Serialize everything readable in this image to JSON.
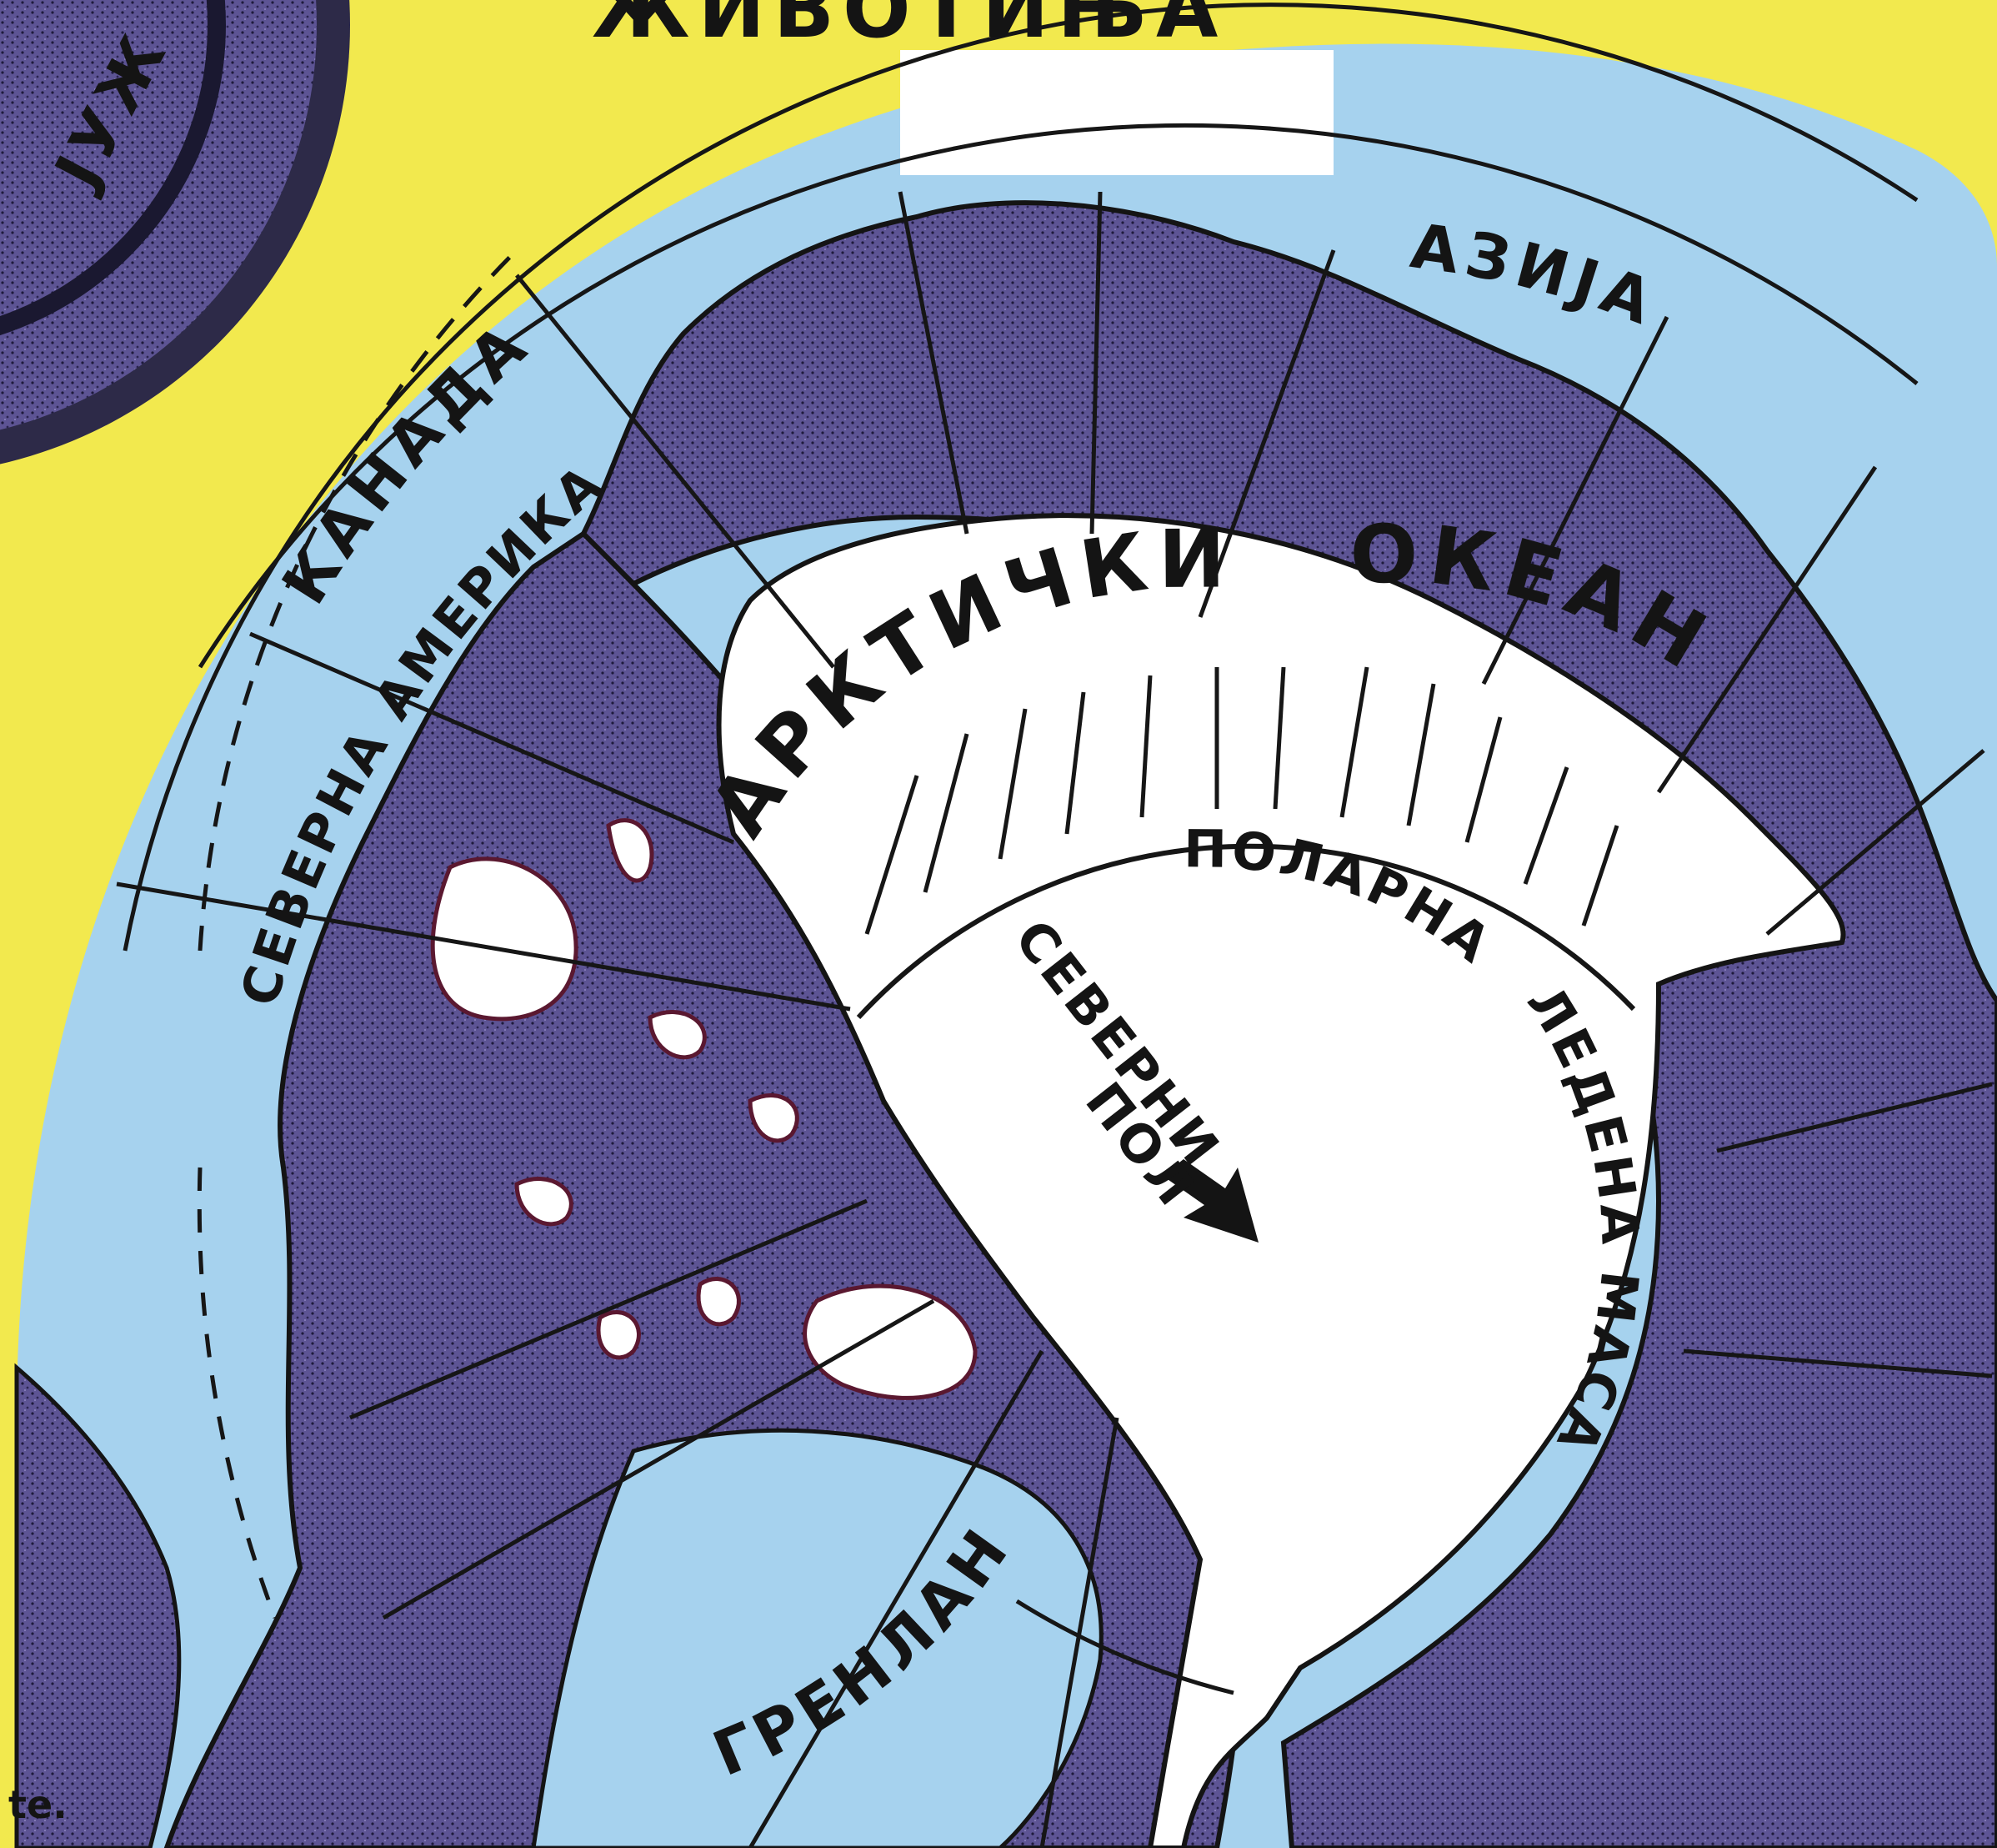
{
  "header_text": "ЖИВОТИЊА",
  "left_fragment": "ЈУЖ",
  "corner_fragment": "te.",
  "labels": {
    "asia": "АЗИЈА",
    "canada": "КАНАДА",
    "north_america": "СЕВЕРНА АМЕРИКА",
    "arctic_word1": "АРКТИЧКИ",
    "arctic_word2": "ОКЕАН",
    "ice_mass_word1": "ПОЛАРНА",
    "ice_mass_word2": "ЛЕДЕНА МАСА",
    "north_pole_line1": "СЕВЕРНИ",
    "north_pole_line2": "ПОЛ",
    "greenland": "ГРЕНЛАНД"
  },
  "colors": {
    "background": "#f2e94e",
    "ocean": "#a6d2ee",
    "land": "#5d5494",
    "ice": "#ffffff",
    "ink": "#141414"
  }
}
